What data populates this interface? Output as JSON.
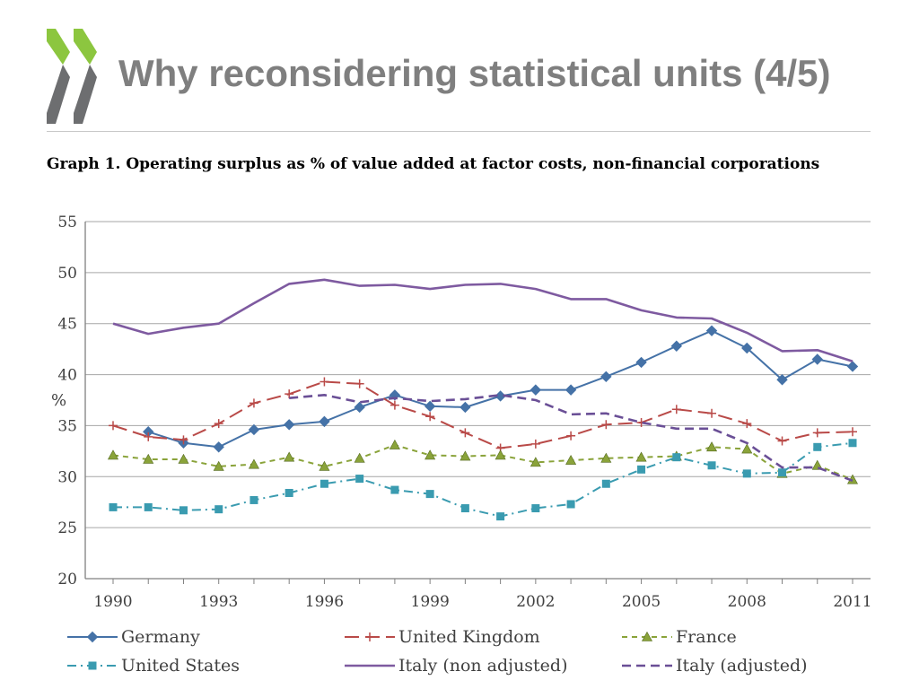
{
  "slide": {
    "title": "Why reconsidering statistical units (4/5)",
    "title_color": "#7f7f7f",
    "logo_colors": [
      "#8cc63f",
      "#6d6e70"
    ]
  },
  "chart_caption": "Graph 1. Operating surplus as % of value added at factor costs, non-financial corporations",
  "chart_data": {
    "type": "line",
    "title": "Graph 1. Operating surplus as % of value added at factor costs, non-financial corporations",
    "ylabel": "%",
    "xlabel": "",
    "ylim": [
      20,
      55
    ],
    "xlim": [
      1990,
      2011
    ],
    "yticks": [
      20,
      25,
      30,
      35,
      40,
      45,
      50,
      55
    ],
    "xticks": [
      1990,
      1993,
      1996,
      1999,
      2002,
      2005,
      2008,
      2011
    ],
    "grid": "horizontal",
    "legend_position": "bottom",
    "series": [
      {
        "name": "Germany",
        "color": "#4572a7",
        "dash": "solid",
        "marker": "diamond",
        "x": [
          1991,
          1992,
          1993,
          1994,
          1995,
          1996,
          1997,
          1998,
          1999,
          2000,
          2001,
          2002,
          2003,
          2004,
          2005,
          2006,
          2007,
          2008,
          2009,
          2010,
          2011
        ],
        "y": [
          34.4,
          33.3,
          32.9,
          34.6,
          35.1,
          35.4,
          36.8,
          38.0,
          36.9,
          36.8,
          37.9,
          38.5,
          38.5,
          39.8,
          41.2,
          42.8,
          44.3,
          42.6,
          39.5,
          41.5,
          40.8
        ]
      },
      {
        "name": "United Kingdom",
        "color": "#b94a48",
        "dash": "longdash",
        "marker": "plus",
        "x": [
          1990,
          1991,
          1992,
          1993,
          1994,
          1995,
          1996,
          1997,
          1998,
          1999,
          2000,
          2001,
          2002,
          2003,
          2004,
          2005,
          2006,
          2007,
          2008,
          2009,
          2010,
          2011
        ],
        "y": [
          35.0,
          33.9,
          33.6,
          35.2,
          37.2,
          38.1,
          39.3,
          39.1,
          37.0,
          35.9,
          34.3,
          32.8,
          33.2,
          34.0,
          35.1,
          35.3,
          36.6,
          36.2,
          35.2,
          33.5,
          34.3,
          34.4
        ]
      },
      {
        "name": "France",
        "color": "#8aa33a",
        "dash": "shortdash",
        "marker": "triangle",
        "x": [
          1990,
          1991,
          1992,
          1993,
          1994,
          1995,
          1996,
          1997,
          1998,
          1999,
          2000,
          2001,
          2002,
          2003,
          2004,
          2005,
          2006,
          2007,
          2008,
          2009,
          2010,
          2011
        ],
        "y": [
          32.1,
          31.7,
          31.7,
          31.0,
          31.2,
          31.9,
          31.0,
          31.8,
          33.1,
          32.1,
          32.0,
          32.1,
          31.4,
          31.6,
          31.8,
          31.9,
          32.0,
          32.9,
          32.7,
          30.3,
          31.1,
          29.7
        ]
      },
      {
        "name": "United States",
        "color": "#3a9bb0",
        "dash": "dashdot",
        "marker": "square",
        "x": [
          1990,
          1991,
          1992,
          1993,
          1994,
          1995,
          1996,
          1997,
          1998,
          1999,
          2000,
          2001,
          2002,
          2003,
          2004,
          2005,
          2006,
          2007,
          2008,
          2009,
          2010,
          2011
        ],
        "y": [
          27.0,
          27.0,
          26.7,
          26.8,
          27.7,
          28.4,
          29.3,
          29.8,
          28.7,
          28.3,
          26.9,
          26.1,
          26.9,
          27.3,
          29.3,
          30.7,
          31.9,
          31.1,
          30.3,
          30.4,
          32.9,
          33.3
        ]
      },
      {
        "name": "Italy (non adjusted)",
        "color": "#7e5aa0",
        "dash": "solid",
        "marker": "none",
        "x": [
          1990,
          1991,
          1992,
          1993,
          1994,
          1995,
          1996,
          1997,
          1998,
          1999,
          2000,
          2001,
          2002,
          2003,
          2004,
          2005,
          2006,
          2007,
          2008,
          2009,
          2010,
          2011
        ],
        "y": [
          45.0,
          44.0,
          44.6,
          45.0,
          47.0,
          48.9,
          49.3,
          48.7,
          48.8,
          48.4,
          48.8,
          48.9,
          48.4,
          47.4,
          47.4,
          46.3,
          45.6,
          45.5,
          44.1,
          42.3,
          42.4,
          41.3
        ]
      },
      {
        "name": "Italy (adjusted)",
        "color": "#6a4f96",
        "dash": "mediumdash",
        "marker": "none",
        "x": [
          1995,
          1996,
          1997,
          1998,
          1999,
          2000,
          2001,
          2002,
          2003,
          2004,
          2005,
          2006,
          2007,
          2008,
          2009,
          2010,
          2011
        ],
        "y": [
          37.7,
          38.0,
          37.3,
          37.7,
          37.4,
          37.6,
          38.0,
          37.5,
          36.1,
          36.2,
          35.3,
          34.7,
          34.7,
          33.3,
          30.9,
          30.9,
          29.6
        ]
      }
    ]
  }
}
